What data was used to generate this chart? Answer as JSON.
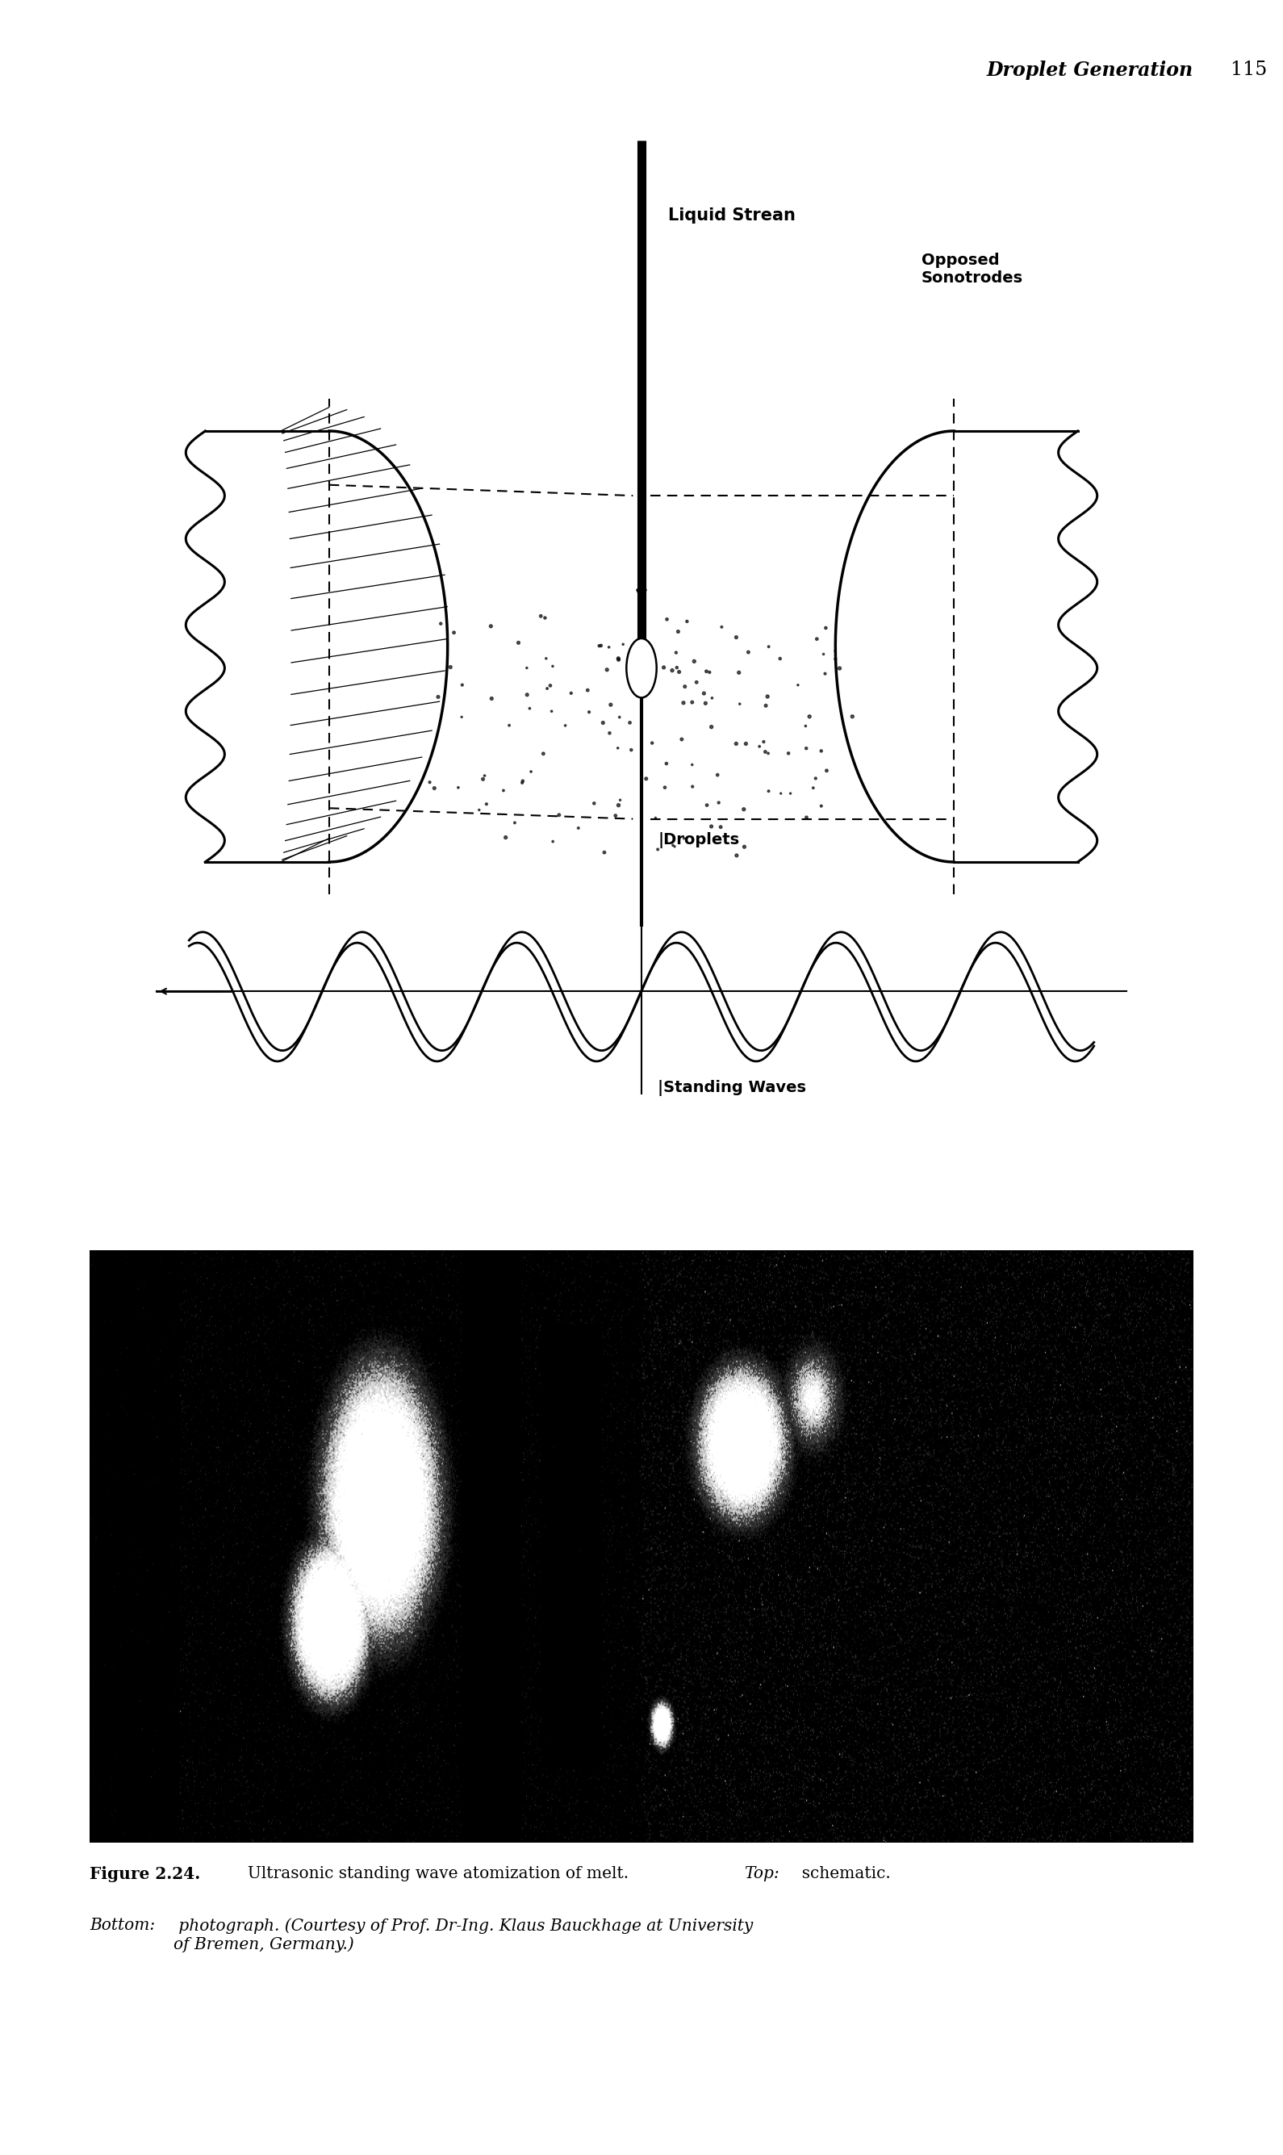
{
  "page_header_italic": "Droplet Generation",
  "page_header_num": "115",
  "header_font_size": 17,
  "label_liquid_stream": "Liquid Strean",
  "label_opposed_sonotrodes": "Opposed\nSonotrodes",
  "label_droplets": "|Droplets",
  "label_standing_waves": "|Standing Waves",
  "bg_color": "#ffffff",
  "text_color": "#000000",
  "caption_fig": "Figure 2.24.",
  "caption_main": "  Ultrasonic standing wave atomization of melt. ",
  "caption_top_italic": "Top:",
  "caption_schematic": "  schematic.",
  "caption_bottom_italic": "Bottom:",
  "caption_photo": " photograph. ",
  "caption_courtesy": "(Courtesy of Prof. Dr-Ing. Klaus Bauckhage at University\nof Bremen, Germany.)"
}
